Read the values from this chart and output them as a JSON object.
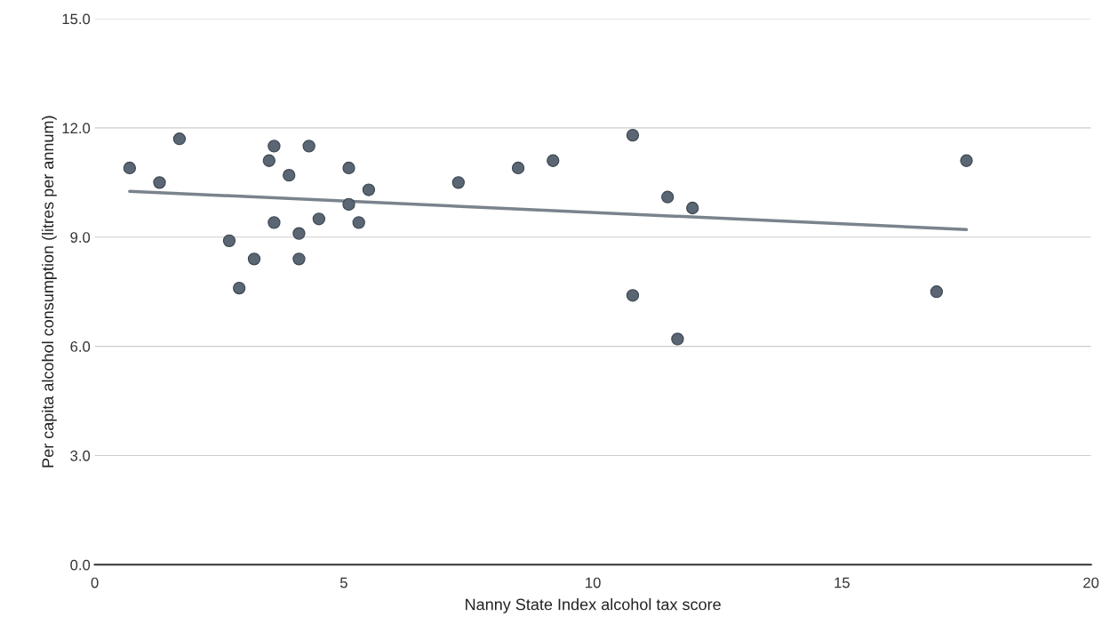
{
  "chart_data": {
    "type": "scatter",
    "xlabel": "Nanny State Index alcohol tax score",
    "ylabel": "Per capita alcohol consumption (litres per annum)",
    "xlim": [
      0,
      20
    ],
    "xticks": [
      0,
      5,
      10,
      15,
      20
    ],
    "ylim": [
      0,
      15
    ],
    "yticks": [
      {
        "value": 0,
        "label": "0.0"
      },
      {
        "value": 3,
        "label": "3.0"
      },
      {
        "value": 6,
        "label": "6.0"
      },
      {
        "value": 9,
        "label": "9.0"
      },
      {
        "value": 12,
        "label": "12.0"
      },
      {
        "value": 15,
        "label": "15.0"
      }
    ],
    "grid": "y",
    "legend": false,
    "series": [
      {
        "marker": "circle",
        "color": "#5a6673",
        "x": [
          0.7,
          1.3,
          1.7,
          2.7,
          2.9,
          3.2,
          3.5,
          3.6,
          3.6,
          3.9,
          4.1,
          4.1,
          4.3,
          4.5,
          5.1,
          5.1,
          5.3,
          5.5,
          7.3,
          8.5,
          9.2,
          10.8,
          10.8,
          11.5,
          11.7,
          12.0,
          16.9,
          17.5
        ],
        "values": [
          10.9,
          10.5,
          11.7,
          8.9,
          7.6,
          8.4,
          11.1,
          11.5,
          9.4,
          10.7,
          9.1,
          8.4,
          11.5,
          9.5,
          10.9,
          9.9,
          9.4,
          10.3,
          10.5,
          10.9,
          11.1,
          11.8,
          7.4,
          10.1,
          6.2,
          9.8,
          7.5,
          11.1
        ]
      },
      {
        "type": "line",
        "color": "#7a838d",
        "x": [
          0.7,
          17.5
        ],
        "values": [
          10.26,
          9.21
        ]
      }
    ]
  }
}
